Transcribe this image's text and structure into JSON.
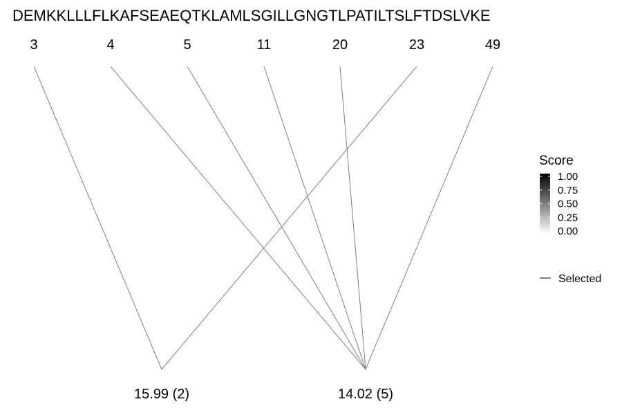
{
  "sequence": "DEMKKLLLFLKAFSEAEQTKLAMLSGILLGNGTLPATILTSLFTDSLVKE",
  "positions": [
    "3",
    "4",
    "5",
    "11",
    "20",
    "23",
    "49"
  ],
  "masses": [
    "15.99 (2)",
    "14.02 (5)"
  ],
  "links": [
    {
      "from": 0,
      "to": 0
    },
    {
      "from": 5,
      "to": 0
    },
    {
      "from": 1,
      "to": 1
    },
    {
      "from": 2,
      "to": 1
    },
    {
      "from": 3,
      "to": 1
    },
    {
      "from": 4,
      "to": 1
    },
    {
      "from": 6,
      "to": 1
    }
  ],
  "legend": {
    "title": "Score",
    "ticks": [
      "1.00",
      "0.75",
      "0.50",
      "0.25",
      "0.00"
    ],
    "selected_label": "Selected"
  },
  "colors": {
    "line": "#808080",
    "gradient_high": "#000000",
    "gradient_low": "#ffffff"
  }
}
